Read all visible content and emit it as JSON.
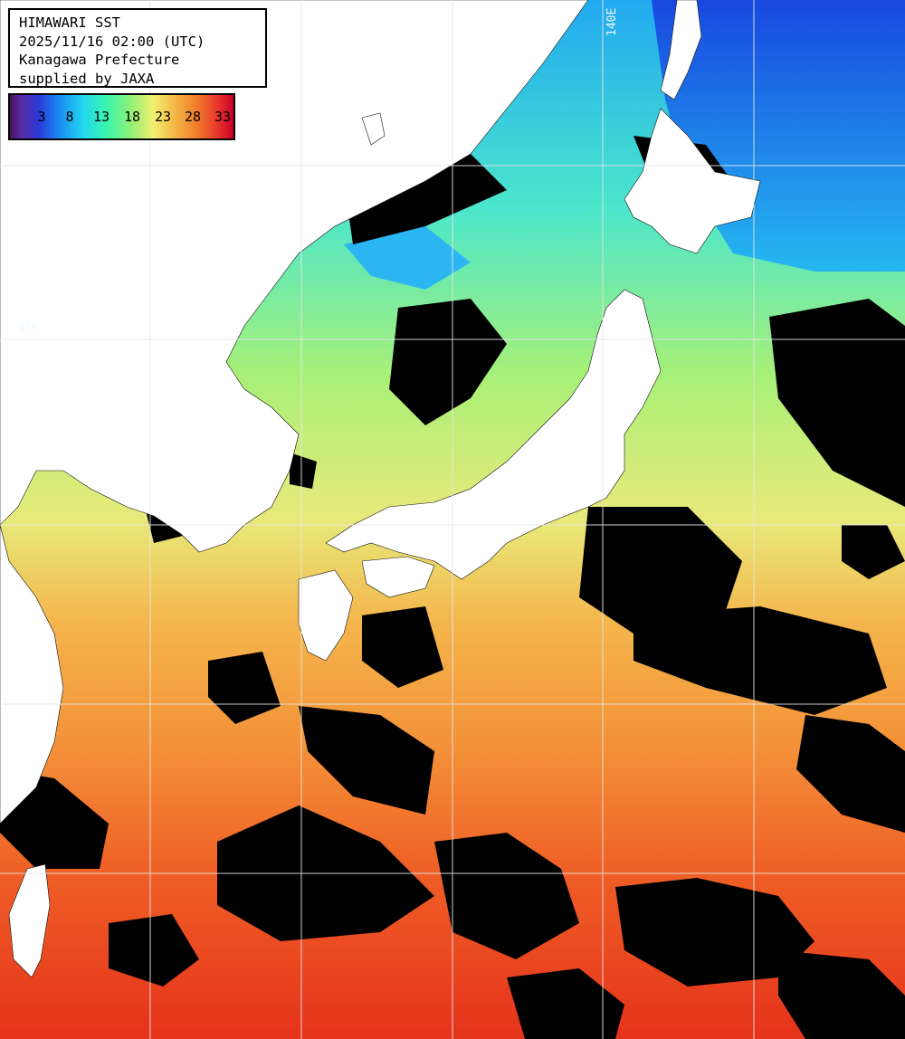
{
  "header": {
    "line1": "HIMAWARI SST",
    "line2": "2025/11/16 02:00 (UTC)",
    "line3": "Kanagawa Prefecture",
    "line4": "supplied by JAXA"
  },
  "colorbar": {
    "ticks": [
      "3",
      "8",
      "13",
      "18",
      "23",
      "28",
      "33"
    ]
  },
  "labels": {
    "lon_140": "140E",
    "lat_40": "40N"
  },
  "colors": {
    "land": "#ffffff",
    "cloud": "#000000",
    "grid": "#e6e6e6",
    "sst_cold": "#1e6af0",
    "sst_cool": "#3be0e0",
    "sst_mild": "#8cec74",
    "sst_warm": "#f5b04a",
    "sst_hot": "#e8321e"
  }
}
